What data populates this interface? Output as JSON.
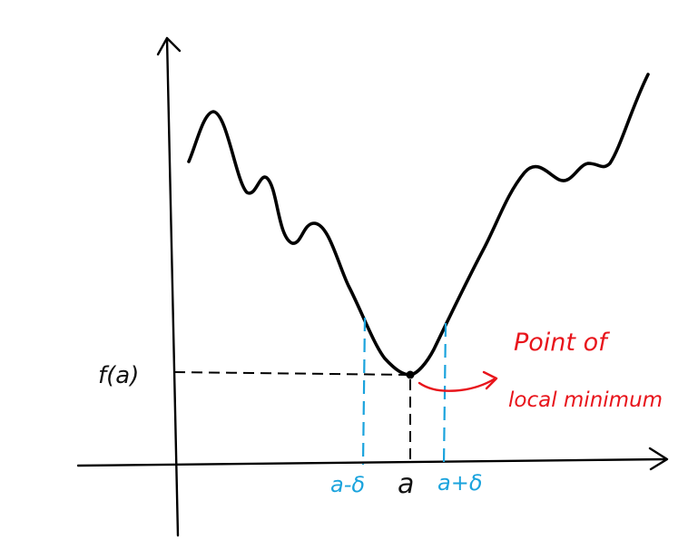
{
  "labels": {
    "f_a": "f(a)",
    "a": "a",
    "a_minus_delta": "a-δ",
    "a_plus_delta": "a+δ",
    "annotation_line1": "Point of",
    "annotation_line2": "local minimum"
  },
  "colors": {
    "curve": "#000000",
    "axes": "#000000",
    "guides_black": "#000000",
    "guides_blue": "#1aa3dd",
    "annotation": "#e8141b"
  }
}
